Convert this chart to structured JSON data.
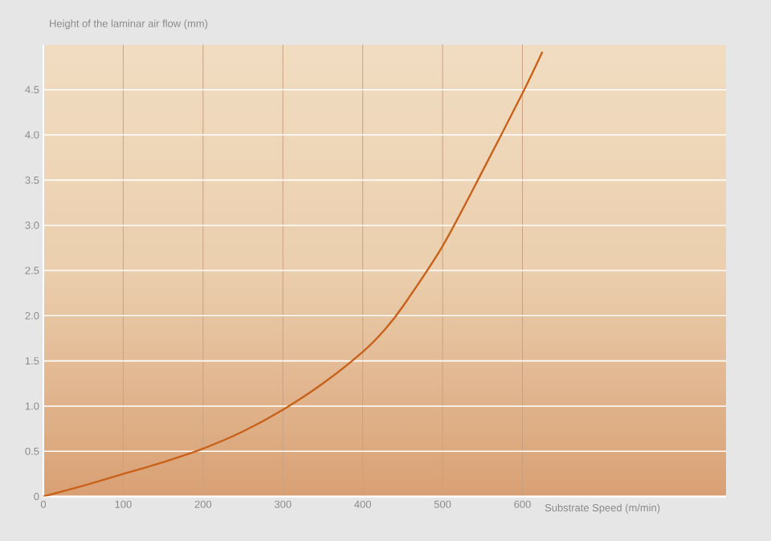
{
  "chart_data": {
    "type": "line",
    "ylabel": "Height of the laminar air flow (mm)",
    "xlabel": "Substrate Speed (m/min)",
    "xlim": [
      0,
      855
    ],
    "ylim": [
      0,
      5
    ],
    "xticks": [
      0,
      100,
      200,
      300,
      400,
      500,
      600
    ],
    "yticks": [
      0,
      0.5,
      {
        "value": 1,
        "label": "1.0"
      },
      1.5,
      {
        "value": 2,
        "label": "2.0"
      },
      2.5,
      {
        "value": 3,
        "label": "3.0"
      },
      3.5,
      {
        "value": 4,
        "label": "4.0"
      },
      4.5
    ],
    "grid": true,
    "series": [
      {
        "color": "#c8621a",
        "x": [
          0,
          50,
          100,
          150,
          200,
          250,
          300,
          350,
          400,
          428,
          450,
          500,
          550,
          600,
          625
        ],
        "values": [
          0,
          0.12,
          0.25,
          0.38,
          0.53,
          0.72,
          0.96,
          1.25,
          1.6,
          1.85,
          2.1,
          2.77,
          3.6,
          4.46,
          4.92
        ]
      }
    ]
  }
}
